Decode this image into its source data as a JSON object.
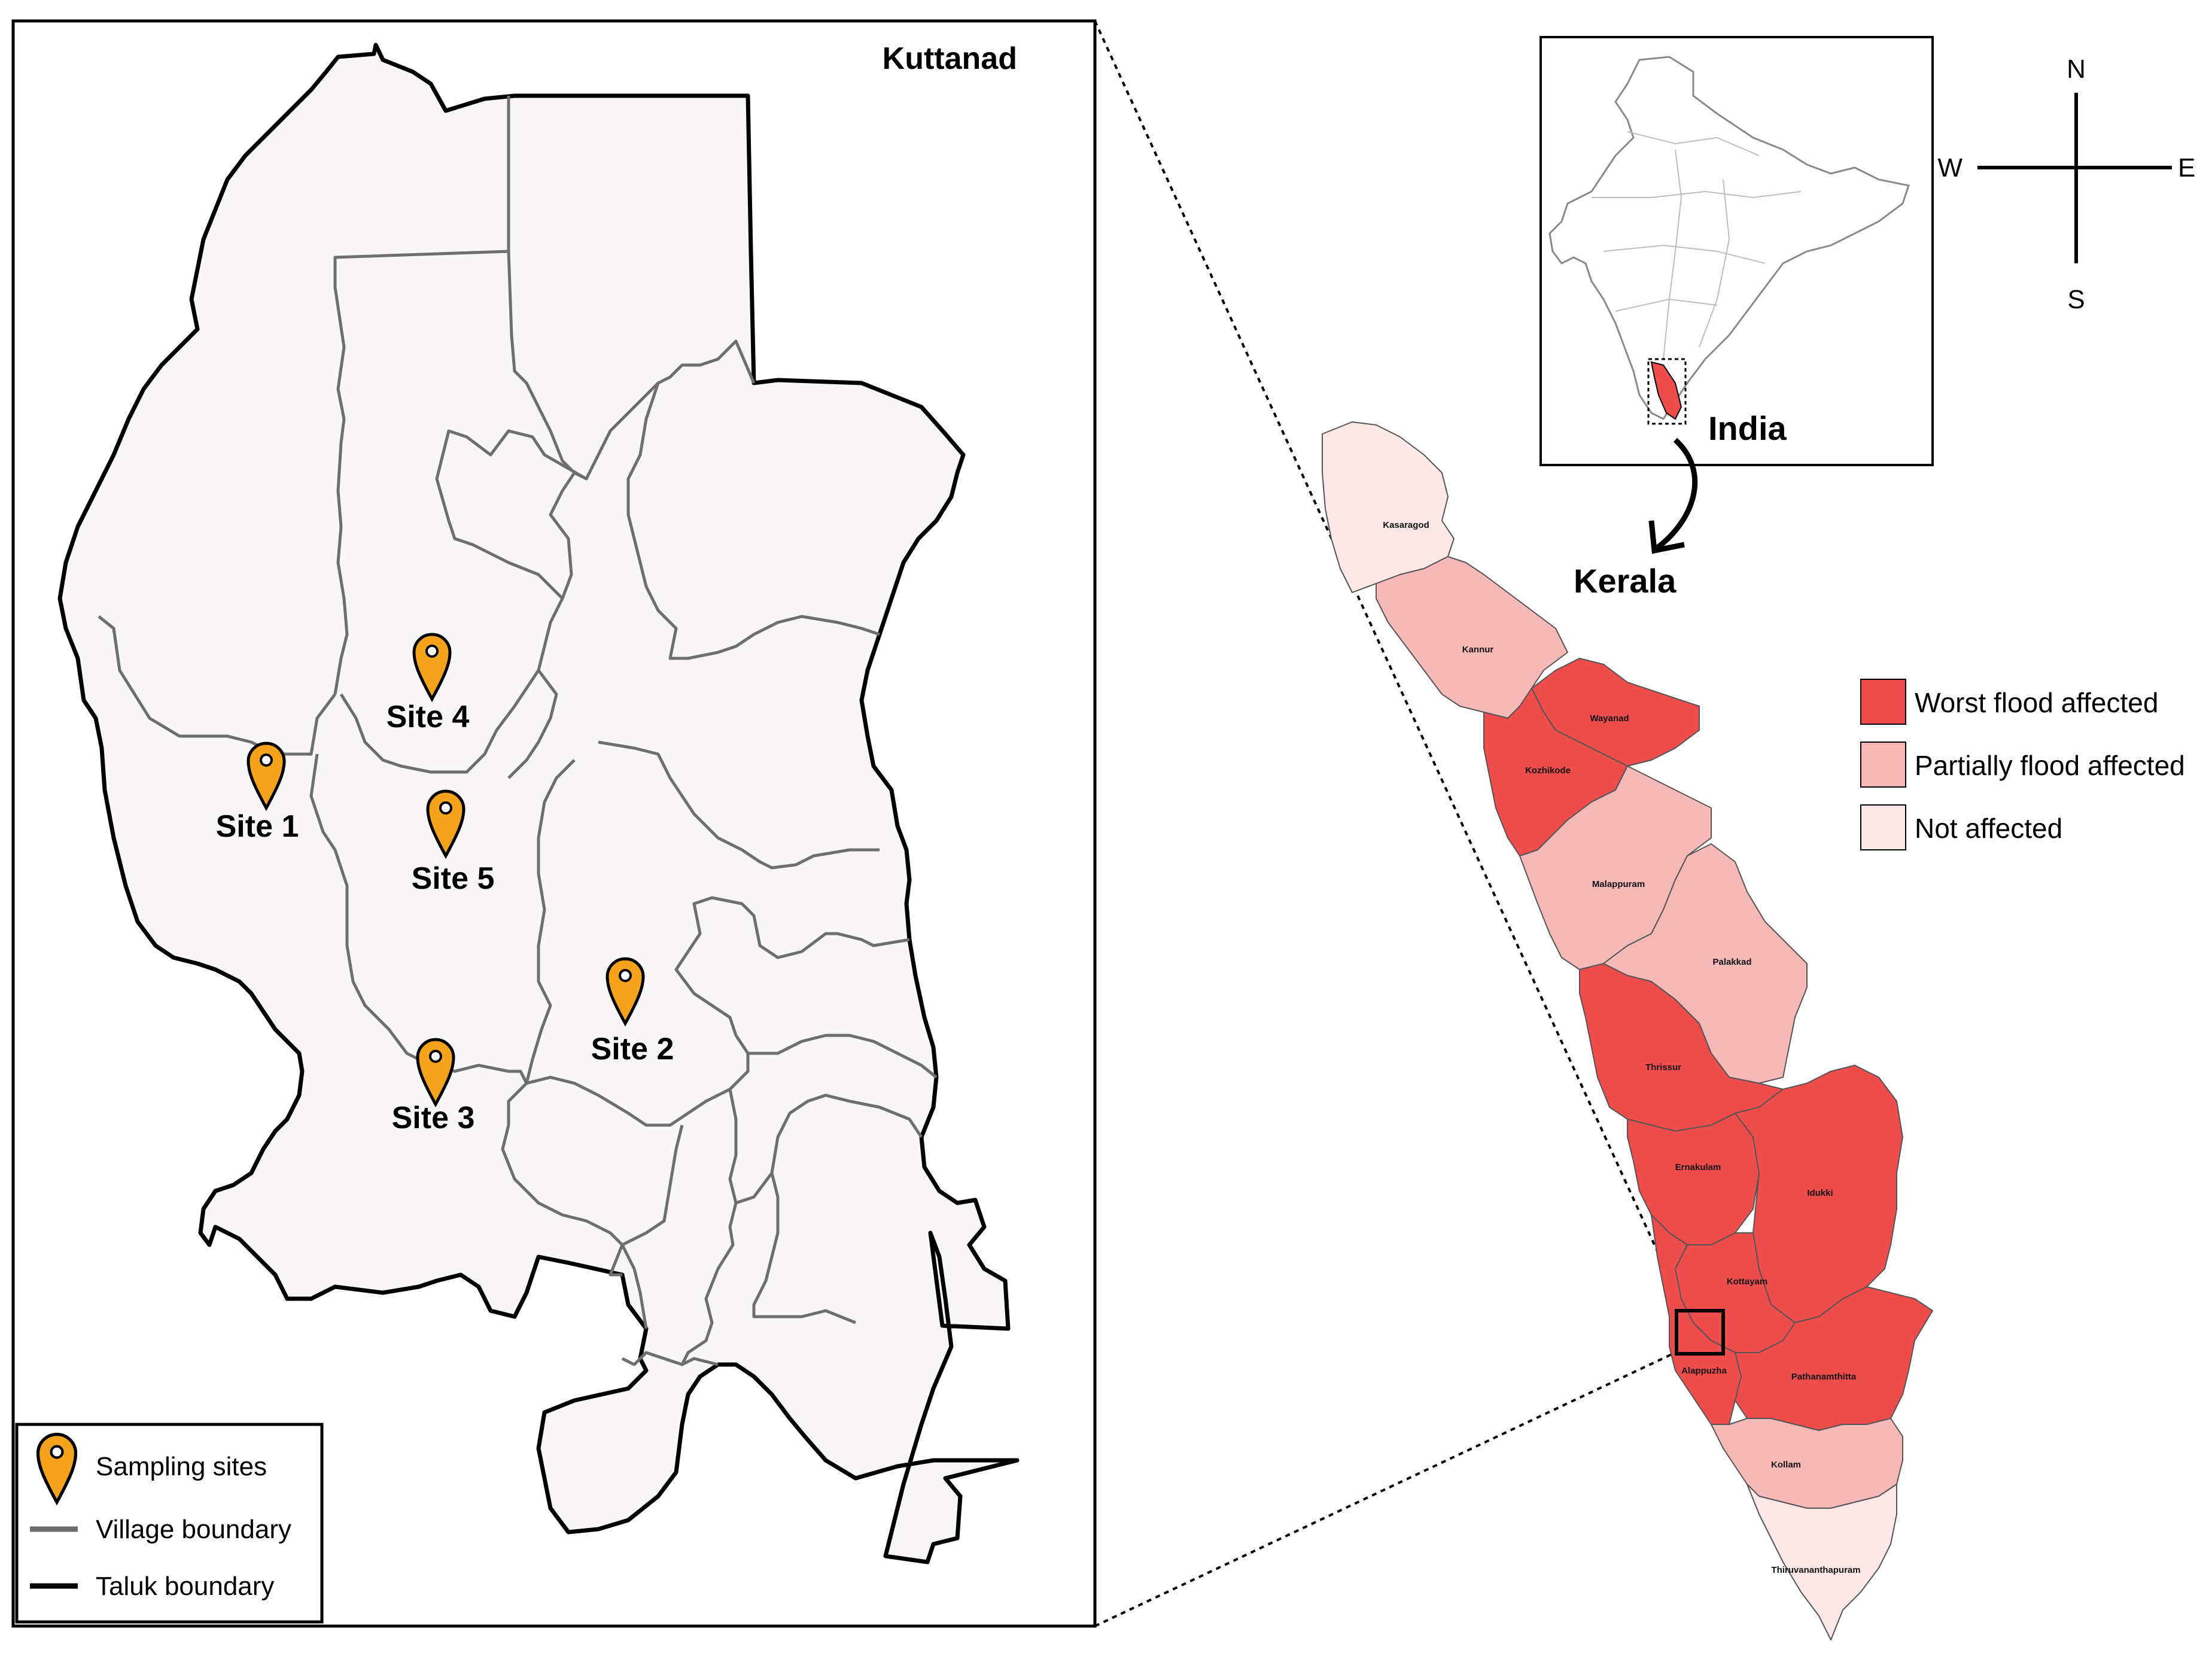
{
  "kuttanad": {
    "title": "Kuttanad",
    "sites": [
      {
        "label": "Site 1"
      },
      {
        "label": "Site 2"
      },
      {
        "label": "Site 3"
      },
      {
        "label": "Site 4"
      },
      {
        "label": "Site 5"
      }
    ]
  },
  "legend": {
    "sampling_sites": "Sampling sites",
    "village_boundary": "Village boundary",
    "taluk_boundary": "Taluk boundary"
  },
  "inset": {
    "country_label": "India",
    "state_label": "Kerala"
  },
  "compass": {
    "n": "N",
    "s": "S",
    "e": "E",
    "w": "W"
  },
  "flood_legend": {
    "worst": "Worst flood affected",
    "partial": "Partially flood affected",
    "none": "Not affected"
  },
  "districts": [
    {
      "name": "Kasaragod",
      "status": "none"
    },
    {
      "name": "Kannur",
      "status": "partial"
    },
    {
      "name": "Wayanad",
      "status": "worst"
    },
    {
      "name": "Kozhikode",
      "status": "worst"
    },
    {
      "name": "Malappuram",
      "status": "partial"
    },
    {
      "name": "Palakkad",
      "status": "partial"
    },
    {
      "name": "Thrissur",
      "status": "worst"
    },
    {
      "name": "Ernakulam",
      "status": "worst"
    },
    {
      "name": "Idukki",
      "status": "worst"
    },
    {
      "name": "Kottayam",
      "status": "worst"
    },
    {
      "name": "Alappuzha",
      "status": "worst"
    },
    {
      "name": "Pathanamthitta",
      "status": "worst"
    },
    {
      "name": "Kollam",
      "status": "partial"
    },
    {
      "name": "Thiruvananthapuram",
      "status": "none"
    }
  ],
  "colors": {
    "worst": "#ef4c4c",
    "partial": "#f7b8b8",
    "none": "#fde8e8",
    "pin": "#f5a31a",
    "land": "#f8f6f7",
    "village_line": "#6e6e6e",
    "taluk_line": "#000000"
  }
}
